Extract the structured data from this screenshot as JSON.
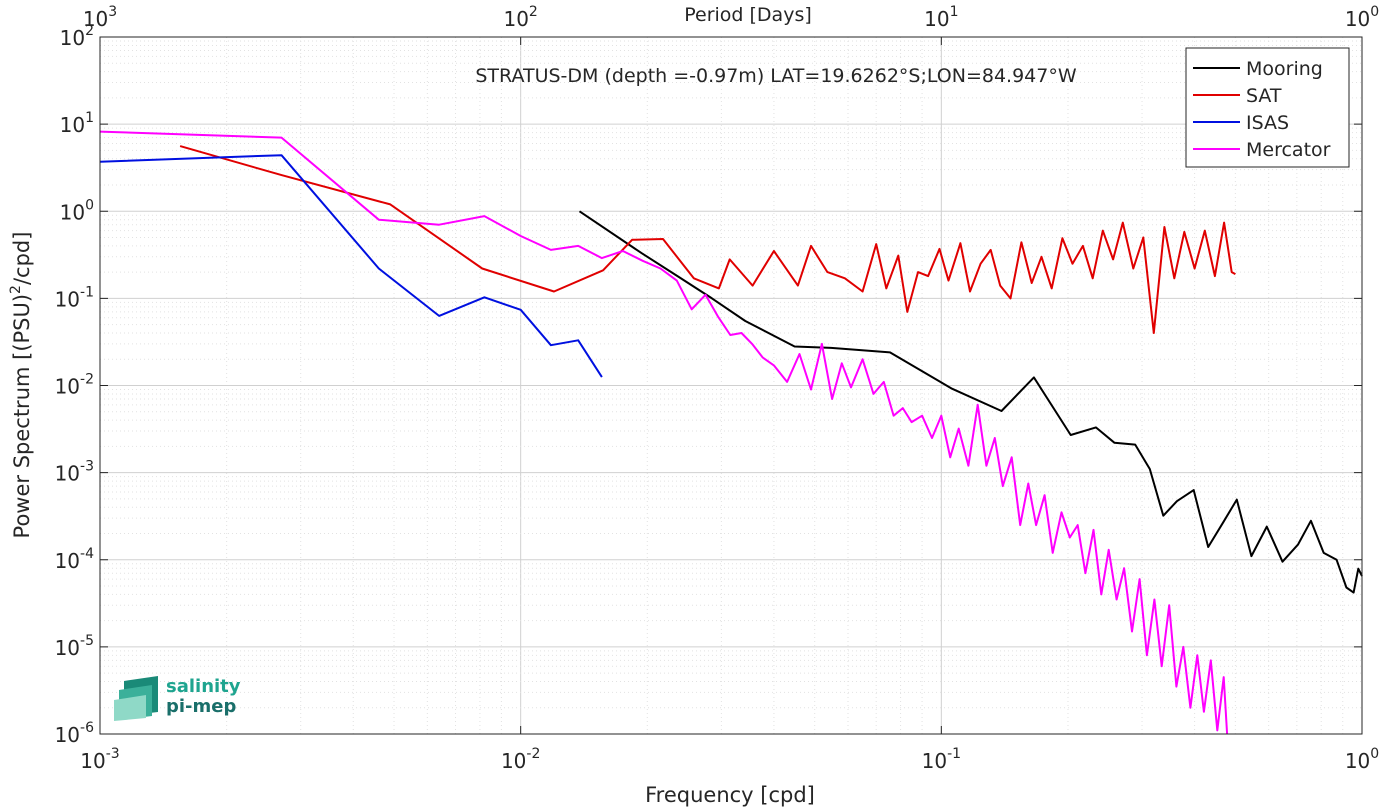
{
  "chart_data": {
    "type": "line",
    "title": "STRATUS-DM (depth =-0.97m) LAT=19.6262°S;LON=84.947°W",
    "xlabel": "Frequency [cpd]",
    "ylabel_main": "Power Spectrum [(PSU)",
    "ylabel_sup": "2",
    "ylabel_tail": "/cpd]",
    "top_xlabel": "Period [Days]",
    "x_scale": "log",
    "y_scale": "log",
    "xlim": [
      0.001,
      1
    ],
    "ylim": [
      1e-06,
      100
    ],
    "x_ticks": [
      {
        "value": 0.001,
        "base": "10",
        "exp": "-3"
      },
      {
        "value": 0.01,
        "base": "10",
        "exp": "-2"
      },
      {
        "value": 0.1,
        "base": "10",
        "exp": "-1"
      },
      {
        "value": 1,
        "base": "10",
        "exp": "0"
      }
    ],
    "y_ticks": [
      {
        "value": 1e-06,
        "base": "10",
        "exp": "-6"
      },
      {
        "value": 1e-05,
        "base": "10",
        "exp": "-5"
      },
      {
        "value": 0.0001,
        "base": "10",
        "exp": "-4"
      },
      {
        "value": 0.001,
        "base": "10",
        "exp": "-3"
      },
      {
        "value": 0.01,
        "base": "10",
        "exp": "-2"
      },
      {
        "value": 0.1,
        "base": "10",
        "exp": "-1"
      },
      {
        "value": 1,
        "base": "10",
        "exp": "0"
      },
      {
        "value": 10,
        "base": "10",
        "exp": "1"
      },
      {
        "value": 100,
        "base": "10",
        "exp": "2"
      }
    ],
    "top_ticks": [
      {
        "frequency": 0.001,
        "base": "10",
        "exp": "3"
      },
      {
        "frequency": 0.01,
        "base": "10",
        "exp": "2"
      },
      {
        "frequency": 0.1,
        "base": "10",
        "exp": "1"
      },
      {
        "frequency": 1,
        "base": "10",
        "exp": "0"
      }
    ],
    "grid": true,
    "minor_grid": true,
    "legend_position": "top-right",
    "series": [
      {
        "name": "Mooring",
        "color": "#000000",
        "x": [
          0.0138,
          0.0194,
          0.0236,
          0.0285,
          0.0342,
          0.0448,
          0.0547,
          0.0755,
          0.106,
          0.139,
          0.166,
          0.203,
          0.233,
          0.258,
          0.289,
          0.313,
          0.337,
          0.363,
          0.398,
          0.431,
          0.468,
          0.504,
          0.546,
          0.594,
          0.647,
          0.705,
          0.756,
          0.811,
          0.87,
          0.918,
          0.955,
          0.98,
          1.0
        ],
        "y": [
          1.0,
          0.33,
          0.18,
          0.1,
          0.055,
          0.028,
          0.027,
          0.024,
          0.0092,
          0.0051,
          0.0124,
          0.0027,
          0.0033,
          0.0022,
          0.0021,
          0.0011,
          0.00032,
          0.00047,
          0.00063,
          0.00014,
          0.00027,
          0.00049,
          0.00011,
          0.00024,
          9.5e-05,
          0.00015,
          0.00028,
          0.00012,
          0.0001,
          4.8e-05,
          4.2e-05,
          7.9e-05,
          6.5e-05
        ]
      },
      {
        "name": "SAT",
        "color": "#e00000",
        "x": [
          0.00155,
          0.0027,
          0.0049,
          0.0081,
          0.012,
          0.0157,
          0.0184,
          0.0218,
          0.0258,
          0.0296,
          0.0314,
          0.0356,
          0.04,
          0.0456,
          0.049,
          0.0536,
          0.059,
          0.065,
          0.07,
          0.074,
          0.079,
          0.083,
          0.088,
          0.093,
          0.099,
          0.104,
          0.111,
          0.117,
          0.124,
          0.131,
          0.138,
          0.146,
          0.155,
          0.164,
          0.173,
          0.183,
          0.194,
          0.205,
          0.217,
          0.229,
          0.242,
          0.256,
          0.27,
          0.286,
          0.302,
          0.312,
          0.32,
          0.339,
          0.358,
          0.378,
          0.4,
          0.423,
          0.447,
          0.47,
          0.49,
          0.5
        ],
        "y": [
          5.6,
          2.6,
          1.2,
          0.22,
          0.12,
          0.21,
          0.47,
          0.48,
          0.17,
          0.13,
          0.28,
          0.14,
          0.35,
          0.14,
          0.4,
          0.2,
          0.17,
          0.12,
          0.42,
          0.13,
          0.31,
          0.07,
          0.2,
          0.18,
          0.37,
          0.16,
          0.43,
          0.12,
          0.25,
          0.36,
          0.14,
          0.1,
          0.44,
          0.15,
          0.3,
          0.13,
          0.49,
          0.25,
          0.4,
          0.17,
          0.6,
          0.28,
          0.74,
          0.22,
          0.5,
          0.12,
          0.04,
          0.66,
          0.17,
          0.58,
          0.22,
          0.6,
          0.18,
          0.74,
          0.2,
          0.19
        ]
      },
      {
        "name": "ISAS",
        "color": "#0010e0",
        "x": [
          0.001,
          0.0027,
          0.0046,
          0.0064,
          0.0082,
          0.01,
          0.0118,
          0.0137,
          0.0156
        ],
        "y": [
          3.7,
          4.4,
          0.22,
          0.063,
          0.103,
          0.074,
          0.029,
          0.033,
          0.0125
        ]
      },
      {
        "name": "Mercator",
        "color": "#ff00ff",
        "x": [
          0.001,
          0.0027,
          0.0046,
          0.0064,
          0.0082,
          0.01,
          0.0118,
          0.0137,
          0.0156,
          0.0175,
          0.0195,
          0.0215,
          0.0235,
          0.0255,
          0.0275,
          0.0295,
          0.0315,
          0.0335,
          0.0355,
          0.0376,
          0.04,
          0.043,
          0.046,
          0.049,
          0.052,
          0.055,
          0.058,
          0.061,
          0.065,
          0.069,
          0.073,
          0.077,
          0.081,
          0.085,
          0.09,
          0.095,
          0.1,
          0.105,
          0.11,
          0.116,
          0.122,
          0.128,
          0.134,
          0.14,
          0.147,
          0.154,
          0.161,
          0.168,
          0.176,
          0.184,
          0.193,
          0.202,
          0.211,
          0.22,
          0.23,
          0.24,
          0.25,
          0.261,
          0.272,
          0.284,
          0.296,
          0.308,
          0.321,
          0.334,
          0.348,
          0.362,
          0.376,
          0.391,
          0.406,
          0.421,
          0.437,
          0.453,
          0.469,
          0.478
        ],
        "y": [
          8.2,
          7.0,
          0.8,
          0.7,
          0.88,
          0.52,
          0.36,
          0.4,
          0.29,
          0.35,
          0.27,
          0.22,
          0.16,
          0.075,
          0.11,
          0.061,
          0.038,
          0.04,
          0.03,
          0.021,
          0.017,
          0.011,
          0.023,
          0.009,
          0.03,
          0.007,
          0.018,
          0.0095,
          0.02,
          0.008,
          0.011,
          0.0045,
          0.0055,
          0.0038,
          0.0045,
          0.0025,
          0.0045,
          0.0015,
          0.0032,
          0.0012,
          0.006,
          0.0012,
          0.0025,
          0.0007,
          0.0015,
          0.00025,
          0.00075,
          0.00025,
          0.00055,
          0.00012,
          0.00035,
          0.00018,
          0.00025,
          7e-05,
          0.00022,
          4e-05,
          0.00013,
          3.5e-05,
          8e-05,
          1.5e-05,
          6e-05,
          8e-06,
          3.5e-05,
          6e-06,
          3e-05,
          3.5e-06,
          1e-05,
          2e-06,
          8e-06,
          1.8e-06,
          7e-06,
          1.1e-06,
          4.5e-06,
          1e-06
        ]
      }
    ],
    "logo": {
      "line1": "salinity",
      "line2": "pi-mep"
    }
  }
}
